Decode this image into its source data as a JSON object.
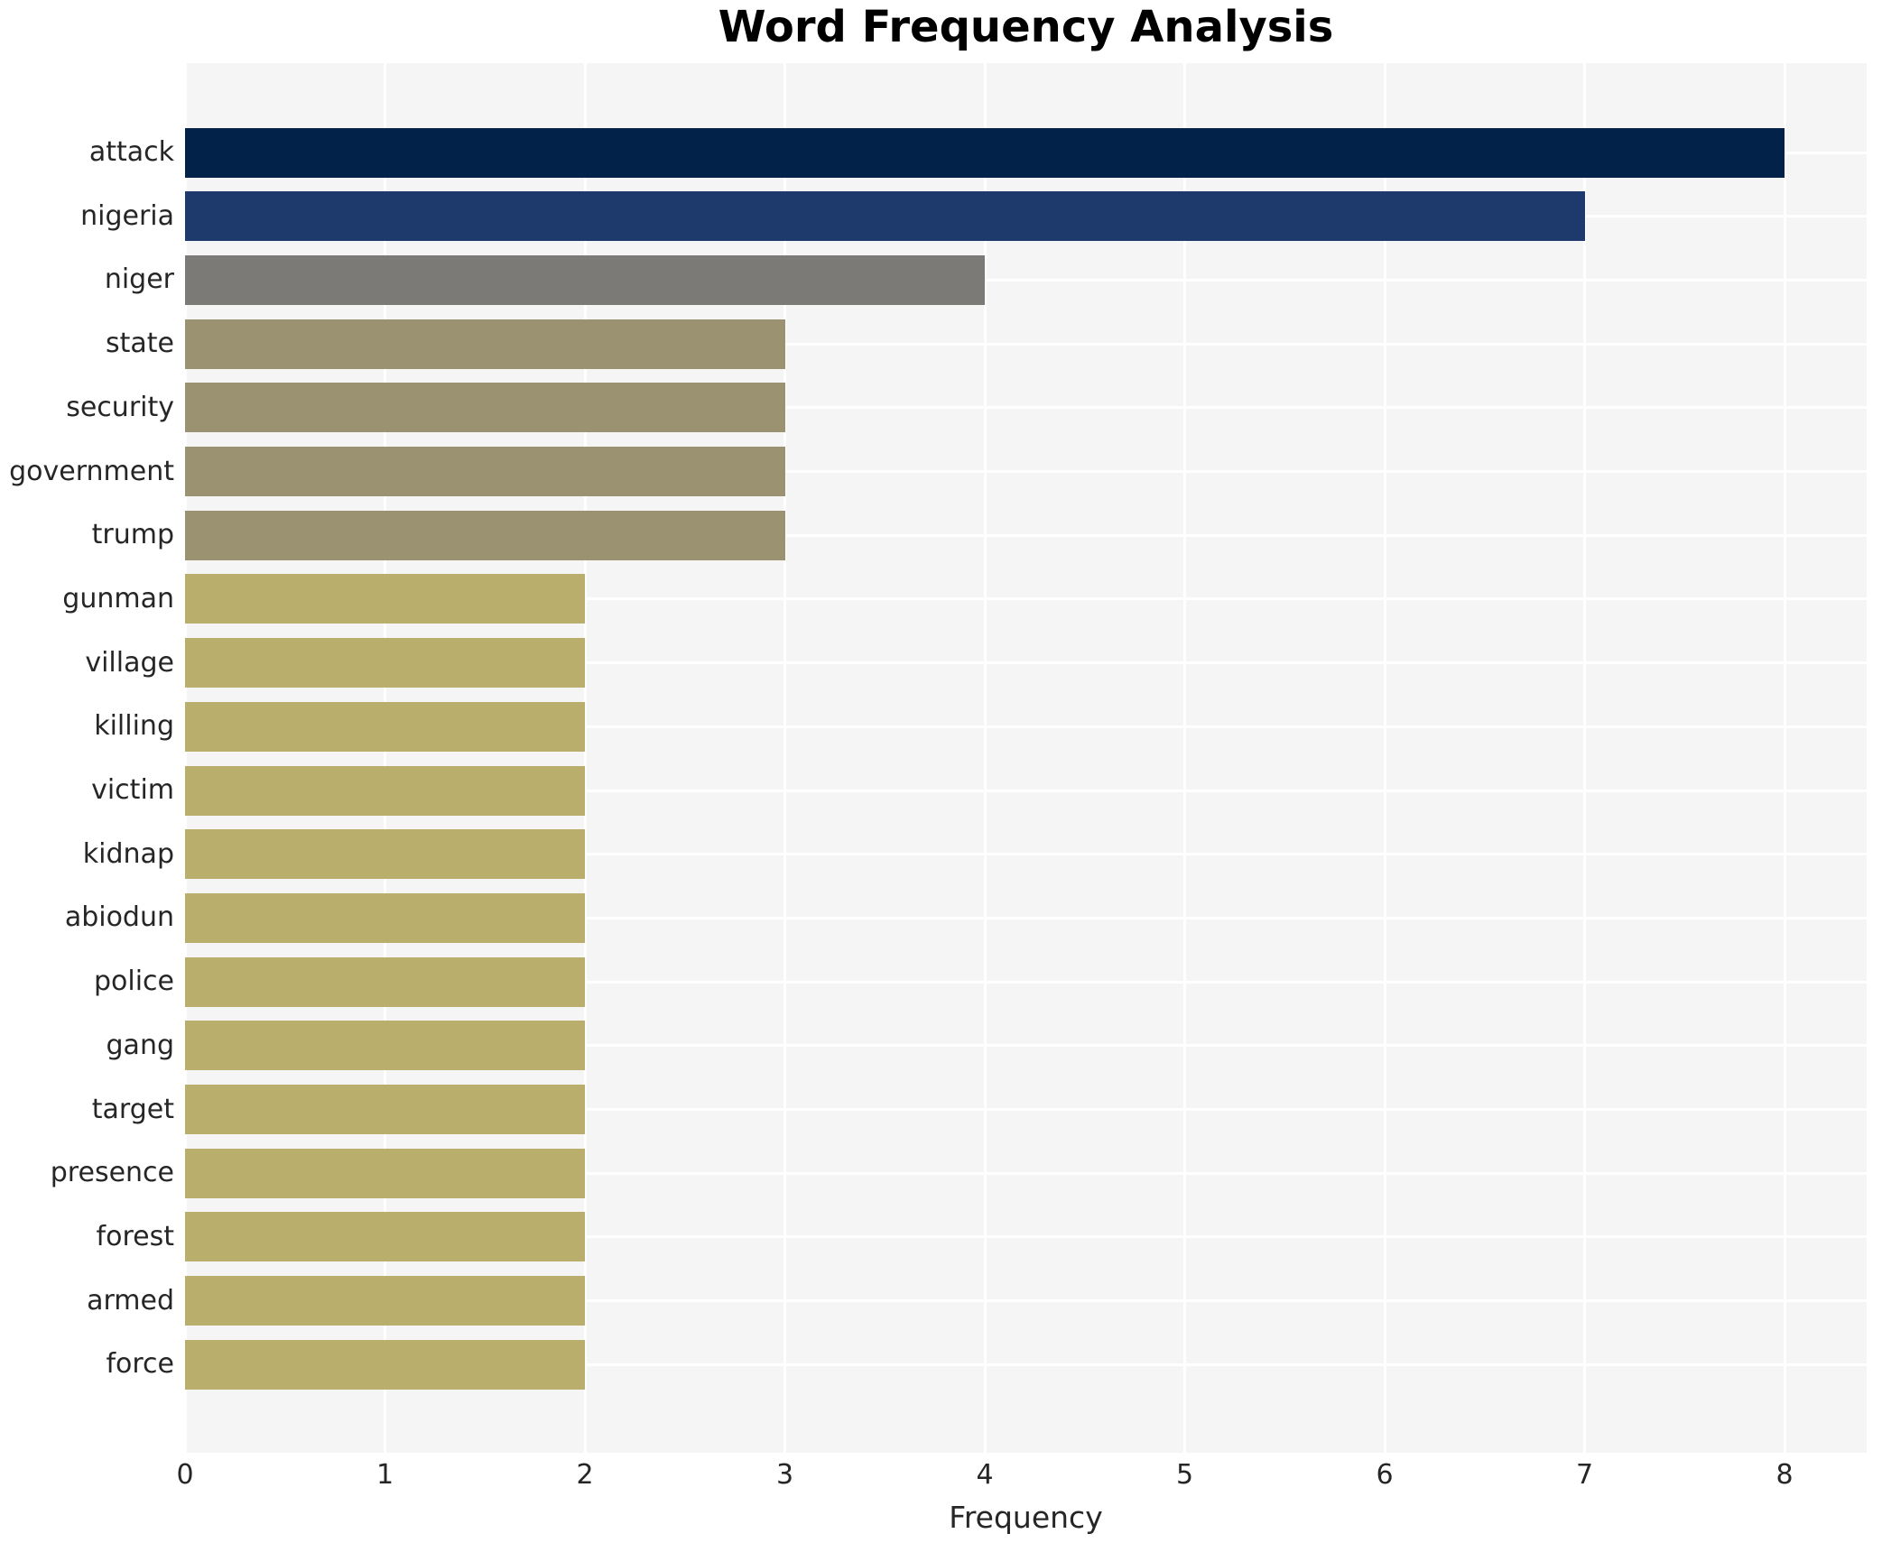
{
  "chart_data": {
    "type": "bar",
    "orientation": "horizontal",
    "title": "Word Frequency Analysis",
    "xlabel": "Frequency",
    "ylabel": "",
    "categories": [
      "attack",
      "nigeria",
      "niger",
      "state",
      "security",
      "government",
      "trump",
      "gunman",
      "village",
      "killing",
      "victim",
      "kidnap",
      "abiodun",
      "police",
      "gang",
      "target",
      "presence",
      "forest",
      "armed",
      "force"
    ],
    "values": [
      8,
      7,
      4,
      3,
      3,
      3,
      3,
      2,
      2,
      2,
      2,
      2,
      2,
      2,
      2,
      2,
      2,
      2,
      2,
      2
    ],
    "bar_colors": [
      "#032249",
      "#1e3a6c",
      "#7b7a77",
      "#9b9271",
      "#9b9271",
      "#9b9271",
      "#9b9271",
      "#b9ae6b",
      "#b9ae6b",
      "#b9ae6b",
      "#b9ae6b",
      "#b9ae6b",
      "#b9ae6b",
      "#b9ae6b",
      "#b9ae6b",
      "#b9ae6b",
      "#b9ae6b",
      "#b9ae6b",
      "#b9ae6b",
      "#b9ae6b"
    ],
    "color_by_value": {
      "8": "#032249",
      "7": "#1e3a6c",
      "4": "#7b7a77",
      "3": "#9b9271",
      "2": "#b9ae6b"
    },
    "x_ticks": [
      0,
      1,
      2,
      3,
      4,
      5,
      6,
      7,
      8
    ],
    "xlim": [
      0,
      8.41
    ],
    "grid": true,
    "grid_color": "#ffffff",
    "plot_background": "#f5f5f6",
    "figure_background": "#ffffff",
    "legend": false,
    "title_color": "#000000",
    "tick_label_color": "#262626"
  }
}
